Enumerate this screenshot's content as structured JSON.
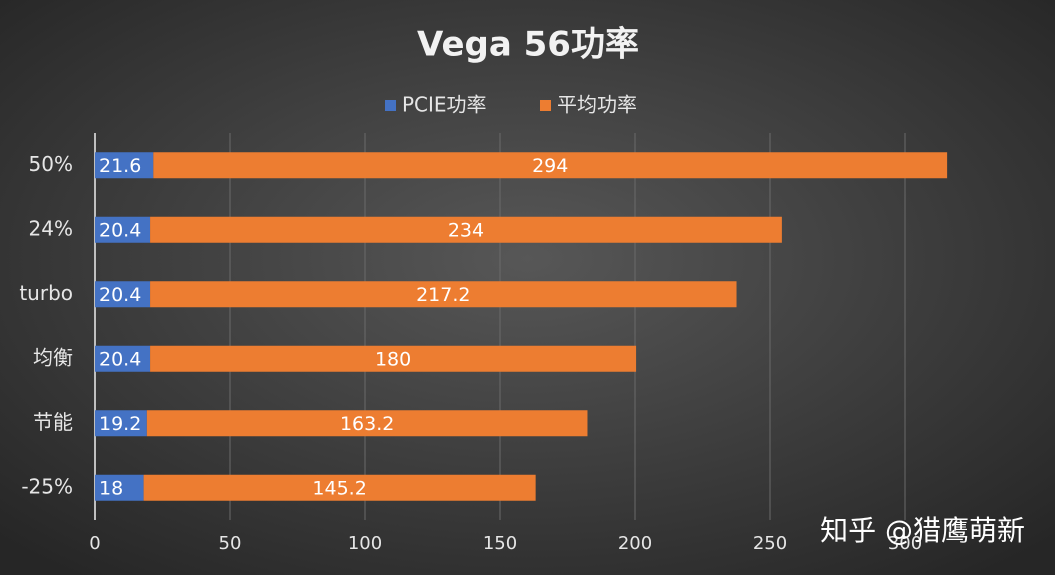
{
  "chart_data": {
    "type": "stacked_barh",
    "title": "Vega 56功率",
    "categories": [
      "50%",
      "24%",
      "turbo",
      "均衡",
      "节能",
      "-25%"
    ],
    "series": [
      {
        "name": "PCIE功率",
        "color": "#4472c4",
        "values": [
          21.6,
          20.4,
          20.4,
          20.4,
          19.2,
          18
        ]
      },
      {
        "name": "平均功率",
        "color": "#ed7d31",
        "values": [
          294,
          234,
          217.2,
          180,
          163.2,
          145.2
        ]
      }
    ],
    "xlim": [
      0,
      350
    ],
    "xticks": [
      0,
      50,
      100,
      150,
      200,
      250,
      300
    ],
    "grid": true,
    "legend": "top",
    "annotation": "知乎 @猎鹰萌新"
  }
}
